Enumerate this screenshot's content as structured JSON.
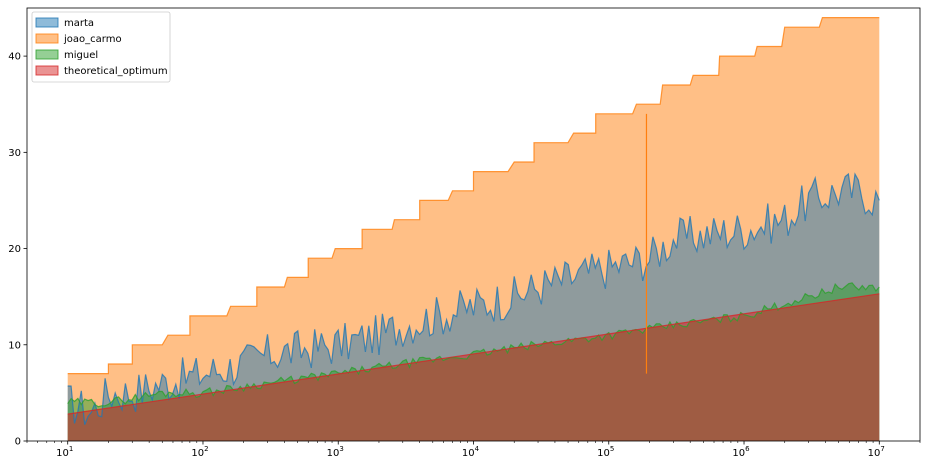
{
  "chart_data": {
    "type": "area",
    "title": "",
    "xlabel": "",
    "ylabel": "",
    "x_scale": "log",
    "xlim": [
      5,
      20000000
    ],
    "ylim": [
      0,
      45
    ],
    "x_ticks": [
      {
        "value": 10,
        "base": "10",
        "exp": "1"
      },
      {
        "value": 100,
        "base": "10",
        "exp": "2"
      },
      {
        "value": 1000,
        "base": "10",
        "exp": "3"
      },
      {
        "value": 10000,
        "base": "10",
        "exp": "4"
      },
      {
        "value": 100000,
        "base": "10",
        "exp": "5"
      },
      {
        "value": 1000000,
        "base": "10",
        "exp": "6"
      },
      {
        "value": 10000000,
        "base": "10",
        "exp": "7"
      }
    ],
    "y_ticks": [
      {
        "value": 0,
        "label": "0"
      },
      {
        "value": 10,
        "label": "10"
      },
      {
        "value": 20,
        "label": "20"
      },
      {
        "value": 30,
        "label": "30"
      },
      {
        "value": 40,
        "label": "40"
      }
    ],
    "grid": false,
    "legend_position": "top-left",
    "series": [
      {
        "name": "marta",
        "color": "#1f77b4",
        "points": [
          [
            10,
            4
          ],
          [
            15,
            3
          ],
          [
            20,
            5
          ],
          [
            30,
            5
          ],
          [
            50,
            6
          ],
          [
            100,
            7
          ],
          [
            200,
            8
          ],
          [
            300,
            9
          ],
          [
            1000,
            10
          ],
          [
            2000,
            11
          ],
          [
            3000,
            12
          ],
          [
            10000,
            14
          ],
          [
            20000,
            15
          ],
          [
            30000,
            16
          ],
          [
            100000,
            18
          ],
          [
            200000,
            19
          ],
          [
            300000,
            21
          ],
          [
            1000000,
            22
          ],
          [
            2000000,
            23
          ],
          [
            3000000,
            25
          ],
          [
            5000000,
            26
          ],
          [
            7000000,
            26
          ],
          [
            10000000,
            25
          ]
        ]
      },
      {
        "name": "joao_carmo",
        "color": "#ff7f0e",
        "points": [
          [
            10,
            7
          ],
          [
            20,
            7
          ],
          [
            20,
            8
          ],
          [
            30,
            8
          ],
          [
            30,
            10
          ],
          [
            50,
            10
          ],
          [
            55,
            11
          ],
          [
            80,
            11
          ],
          [
            80,
            13
          ],
          [
            150,
            13
          ],
          [
            160,
            14
          ],
          [
            250,
            14
          ],
          [
            250,
            16
          ],
          [
            400,
            16
          ],
          [
            420,
            17
          ],
          [
            600,
            17
          ],
          [
            600,
            19
          ],
          [
            900,
            19
          ],
          [
            950,
            20
          ],
          [
            1500,
            20
          ],
          [
            1500,
            22
          ],
          [
            2500,
            22
          ],
          [
            2600,
            23
          ],
          [
            4000,
            23
          ],
          [
            4000,
            25
          ],
          [
            6500,
            25
          ],
          [
            7000,
            26
          ],
          [
            10000,
            26
          ],
          [
            10000,
            28
          ],
          [
            18000,
            28
          ],
          [
            20000,
            29
          ],
          [
            28000,
            29
          ],
          [
            28000,
            31
          ],
          [
            50000,
            31
          ],
          [
            55000,
            32
          ],
          [
            80000,
            32
          ],
          [
            80000,
            34
          ],
          [
            150000,
            34
          ],
          [
            160000,
            35
          ],
          [
            240000,
            35
          ],
          [
            250000,
            37
          ],
          [
            400000,
            37
          ],
          [
            420000,
            38
          ],
          [
            650000,
            38
          ],
          [
            660000,
            40
          ],
          [
            1200000,
            40
          ],
          [
            1250000,
            41
          ],
          [
            1900000,
            41
          ],
          [
            2000000,
            43
          ],
          [
            3600000,
            43
          ],
          [
            3800000,
            44
          ],
          [
            10000000,
            44
          ]
        ]
      },
      {
        "name": "miguel",
        "color": "#2ca02c",
        "points": [
          [
            10,
            4
          ],
          [
            20,
            4
          ],
          [
            50,
            5
          ],
          [
            100,
            5
          ],
          [
            300,
            6
          ],
          [
            1000,
            7
          ],
          [
            3000,
            8
          ],
          [
            10000,
            9
          ],
          [
            30000,
            10
          ],
          [
            100000,
            11
          ],
          [
            300000,
            12
          ],
          [
            1000000,
            13
          ],
          [
            3000000,
            15
          ],
          [
            5000000,
            16
          ],
          [
            10000000,
            16
          ]
        ]
      },
      {
        "name": "theoretical_optimum",
        "color": "#d62728",
        "points": [
          [
            10,
            2.8
          ],
          [
            10000000,
            15.3
          ]
        ]
      }
    ],
    "annotations": [
      {
        "series": "joao_carmo",
        "x": 190000,
        "y": 7
      }
    ]
  }
}
